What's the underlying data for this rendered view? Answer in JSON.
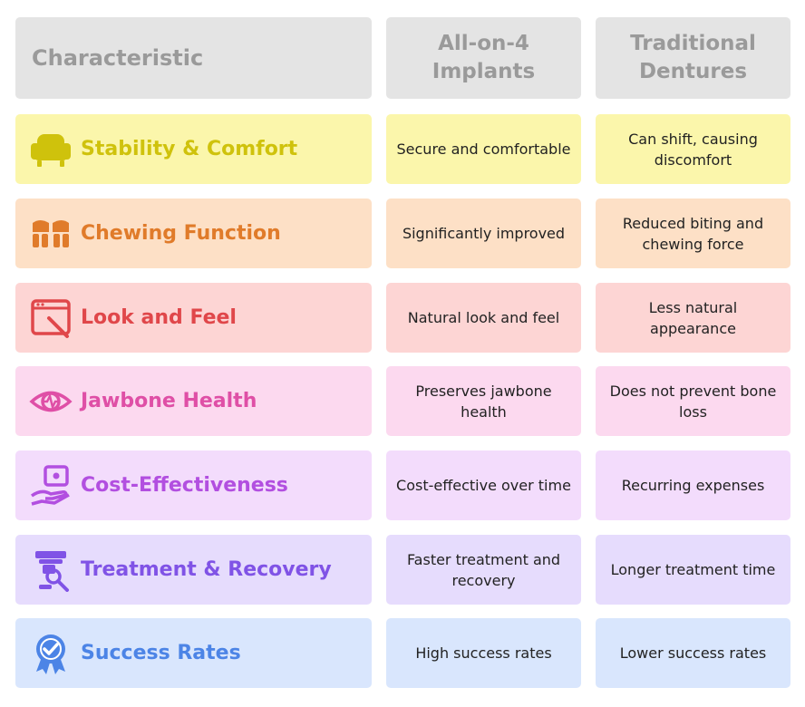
{
  "header": {
    "characteristic": "Characteristic",
    "col1": "All-on-4 Implants",
    "col2": "Traditional Dentures"
  },
  "rows": [
    {
      "label": "Stability & Comfort",
      "icon": "armchair-icon",
      "bg": "#fbf6ab",
      "accent": "#cfc20c",
      "implants": "Secure and comfortable",
      "dentures": "Can shift, causing discomfort"
    },
    {
      "label": "Chewing Function",
      "icon": "chewing-teeth-icon",
      "bg": "#fde0c6",
      "accent": "#e07b2a",
      "implants": "Significantly improved",
      "dentures": "Reduced biting and chewing force"
    },
    {
      "label": "Look and Feel",
      "icon": "mirror-icon",
      "bg": "#fdd5d4",
      "accent": "#e0474a",
      "implants": "Natural look and feel",
      "dentures": "Less natural appearance"
    },
    {
      "label": "Jawbone Health",
      "icon": "eye-pulse-icon",
      "bg": "#fcd9ef",
      "accent": "#df4fa6",
      "implants": "Preserves jawbone health",
      "dentures": "Does not prevent bone loss"
    },
    {
      "label": "Cost-Effectiveness",
      "icon": "hand-money-icon",
      "bg": "#f3dcfc",
      "accent": "#b24fe0",
      "implants": "Cost-effective over time",
      "dentures": "Recurring expenses"
    },
    {
      "label": "Treatment & Recovery",
      "icon": "dental-chair-icon",
      "bg": "#e6dcfd",
      "accent": "#8053e6",
      "implants": "Faster treatment and recovery",
      "dentures": "Longer treatment time"
    },
    {
      "label": "Success Rates",
      "icon": "award-badge-icon",
      "bg": "#d9e6fd",
      "accent": "#4c84e6",
      "implants": "High success rates",
      "dentures": "Lower success rates"
    }
  ]
}
